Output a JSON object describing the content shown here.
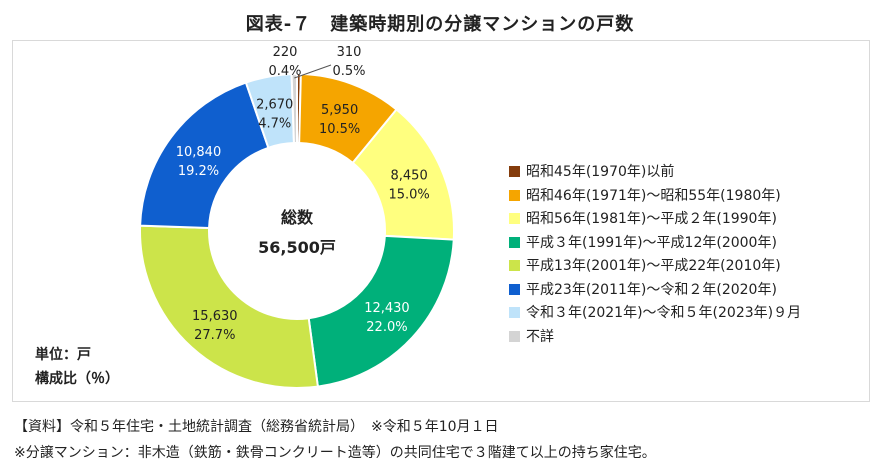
{
  "title": "図表-７　建築時期別の分譲マンションの戸数",
  "center": {
    "label": "総数",
    "total": "56,500戸"
  },
  "unit_label": "単位：戸",
  "ratio_label": "構成比（％）",
  "source": "【資料】令和５年住宅・土地統計調査（総務省統計局）　※令和５年10月１日",
  "note": "※分譲マンション：非木造（鉄筋・鉄骨コンクリート造等）の共同住宅で３階建て以上の持ち家住宅。",
  "chart_data": {
    "type": "pie",
    "donut": true,
    "legend_position": "right",
    "labels": [
      "昭和45年(1970年)以前",
      "昭和46年(1971年)～昭和55年(1980年)",
      "昭和56年(1981年)～平成２年(1990年)",
      "平成３年(1991年)～平成12年(2000年)",
      "平成13年(2001年)～平成22年(2010年)",
      "平成23年(2011年)～令和２年(2020年)",
      "令和３年(2021年)～令和５年(2023年)９月",
      "不詳"
    ],
    "values": [
      220,
      5950,
      8450,
      12430,
      15630,
      10840,
      2670,
      310
    ],
    "value_labels": [
      "220",
      "5,950",
      "8,450",
      "12,430",
      "15,630",
      "10,840",
      "2,670",
      "310"
    ],
    "percents": [
      "0.4%",
      "10.5%",
      "15.0%",
      "22.0%",
      "27.7%",
      "19.2%",
      "4.7%",
      "0.5%"
    ],
    "colors": [
      "#843c0c",
      "#f5a500",
      "#ffff7f",
      "#00b07a",
      "#cce44a",
      "#0f5fcf",
      "#bfe3fa",
      "#d4d4d4"
    ],
    "label_colors": [
      "#222222",
      "#222222",
      "#222222",
      "#ffffff",
      "#222222",
      "#ffffff",
      "#222222",
      "#222222"
    ]
  }
}
